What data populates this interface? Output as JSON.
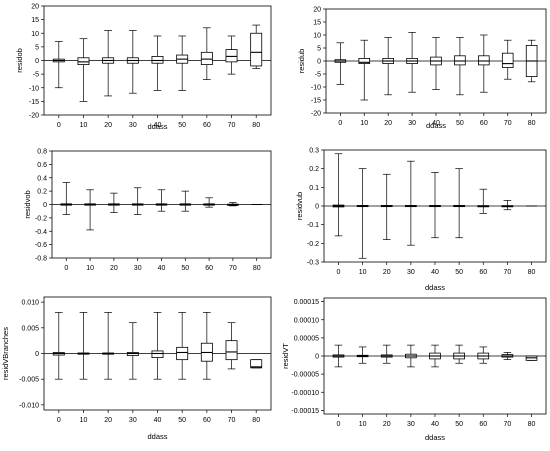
{
  "chart_data": [
    {
      "type": "boxplot",
      "xlabel": "ddass",
      "ylabel": "residob",
      "categories": [
        "0",
        "10",
        "20",
        "30",
        "40",
        "50",
        "60",
        "70",
        "80"
      ],
      "ylim": [
        -20,
        20
      ],
      "yticks": [
        "20",
        "15",
        "10",
        "5",
        "0",
        "-5",
        "-10",
        "-15",
        "-20"
      ],
      "ytick_values": [
        20,
        15,
        10,
        5,
        0,
        -5,
        -10,
        -15,
        -20
      ],
      "zero_line": 0,
      "boxes": [
        {
          "whisker_low": -10,
          "q1": -0.5,
          "median": 0,
          "q3": 0.5,
          "whisker_high": 7
        },
        {
          "whisker_low": -15,
          "q1": -1.5,
          "median": -0.5,
          "q3": 1,
          "whisker_high": 8
        },
        {
          "whisker_low": -13,
          "q1": -1,
          "median": 0,
          "q3": 1,
          "whisker_high": 11
        },
        {
          "whisker_low": -12,
          "q1": -1,
          "median": 0,
          "q3": 1,
          "whisker_high": 11
        },
        {
          "whisker_low": -11,
          "q1": -1,
          "median": 0,
          "q3": 1.5,
          "whisker_high": 9
        },
        {
          "whisker_low": -11,
          "q1": -1,
          "median": 0.5,
          "q3": 2,
          "whisker_high": 9
        },
        {
          "whisker_low": -7,
          "q1": -1.5,
          "median": 0.5,
          "q3": 3,
          "whisker_high": 12
        },
        {
          "whisker_low": -5,
          "q1": -0.5,
          "median": 1.5,
          "q3": 4,
          "whisker_high": 9
        },
        {
          "whisker_low": -3,
          "q1": -2,
          "median": 3,
          "q3": 10,
          "whisker_high": 13
        }
      ]
    },
    {
      "type": "boxplot",
      "xlabel": "ddass",
      "ylabel": "residub",
      "categories": [
        "0",
        "10",
        "20",
        "30",
        "40",
        "50",
        "60",
        "70",
        "80"
      ],
      "ylim": [
        -20,
        20
      ],
      "yticks": [
        "20",
        "15",
        "10",
        "5",
        "0",
        "-5",
        "-10",
        "-15",
        "-20"
      ],
      "ytick_values": [
        20,
        15,
        10,
        5,
        0,
        -5,
        -10,
        -15,
        -20
      ],
      "zero_line": 0,
      "boxes": [
        {
          "whisker_low": -9,
          "q1": -0.5,
          "median": 0,
          "q3": 0.5,
          "whisker_high": 7
        },
        {
          "whisker_low": -15,
          "q1": -1,
          "median": -0.5,
          "q3": 1,
          "whisker_high": 8
        },
        {
          "whisker_low": -13,
          "q1": -1,
          "median": 0,
          "q3": 1,
          "whisker_high": 9
        },
        {
          "whisker_low": -12,
          "q1": -1,
          "median": 0,
          "q3": 1,
          "whisker_high": 11
        },
        {
          "whisker_low": -11,
          "q1": -1.5,
          "median": 0,
          "q3": 1.5,
          "whisker_high": 9
        },
        {
          "whisker_low": -13,
          "q1": -1.5,
          "median": 0,
          "q3": 2,
          "whisker_high": 9
        },
        {
          "whisker_low": -12,
          "q1": -1.5,
          "median": 0,
          "q3": 2,
          "whisker_high": 10
        },
        {
          "whisker_low": -7,
          "q1": -2.5,
          "median": -1,
          "q3": 3,
          "whisker_high": 8
        },
        {
          "whisker_low": -8,
          "q1": -6,
          "median": 0,
          "q3": 6,
          "whisker_high": 8
        }
      ]
    },
    {
      "type": "boxplot",
      "xlabel": "",
      "ylabel": "residvob",
      "categories": [
        "0",
        "10",
        "20",
        "30",
        "40",
        "50",
        "60",
        "70",
        "80"
      ],
      "ylim": [
        -0.8,
        0.8
      ],
      "yticks": [
        "0.8",
        "0.6",
        "0.4",
        "0.2",
        "0",
        "-0.2",
        "-0.4",
        "-0.6",
        "-0.8"
      ],
      "ytick_values": [
        0.8,
        0.6,
        0.4,
        0.2,
        0,
        -0.2,
        -0.4,
        -0.6,
        -0.8
      ],
      "zero_line": 0,
      "boxes": [
        {
          "whisker_low": -0.15,
          "q1": -0.01,
          "median": 0,
          "q3": 0.01,
          "whisker_high": 0.33
        },
        {
          "whisker_low": -0.38,
          "q1": -0.01,
          "median": 0,
          "q3": 0.01,
          "whisker_high": 0.22
        },
        {
          "whisker_low": -0.12,
          "q1": -0.01,
          "median": 0,
          "q3": 0.01,
          "whisker_high": 0.17
        },
        {
          "whisker_low": -0.15,
          "q1": -0.01,
          "median": 0,
          "q3": 0.01,
          "whisker_high": 0.25
        },
        {
          "whisker_low": -0.1,
          "q1": -0.01,
          "median": 0,
          "q3": 0.01,
          "whisker_high": 0.22
        },
        {
          "whisker_low": -0.1,
          "q1": -0.01,
          "median": 0,
          "q3": 0.01,
          "whisker_high": 0.2
        },
        {
          "whisker_low": -0.04,
          "q1": -0.01,
          "median": 0,
          "q3": 0.01,
          "whisker_high": 0.1
        },
        {
          "whisker_low": -0.02,
          "q1": -0.005,
          "median": 0,
          "q3": 0.005,
          "whisker_high": 0.03
        },
        {
          "whisker_low": 0,
          "q1": 0,
          "median": 0,
          "q3": 0,
          "whisker_high": 0
        }
      ]
    },
    {
      "type": "boxplot",
      "xlabel": "ddass",
      "ylabel": "residvub",
      "categories": [
        "0",
        "10",
        "20",
        "30",
        "40",
        "50",
        "60",
        "70",
        "80"
      ],
      "ylim": [
        -0.3,
        0.3
      ],
      "yticks": [
        "0.3",
        "0.2",
        "0.1",
        "0",
        "-0.1",
        "-0.2",
        "-0.3"
      ],
      "ytick_values": [
        0.3,
        0.2,
        0.1,
        0,
        -0.1,
        -0.2,
        -0.3
      ],
      "zero_line": 0,
      "boxes": [
        {
          "whisker_low": -0.16,
          "q1": -0.005,
          "median": 0,
          "q3": 0.005,
          "whisker_high": 0.28
        },
        {
          "whisker_low": -0.28,
          "q1": -0.003,
          "median": 0,
          "q3": 0.003,
          "whisker_high": 0.2
        },
        {
          "whisker_low": -0.18,
          "q1": -0.003,
          "median": 0,
          "q3": 0.003,
          "whisker_high": 0.17
        },
        {
          "whisker_low": -0.21,
          "q1": -0.003,
          "median": 0,
          "q3": 0.003,
          "whisker_high": 0.24
        },
        {
          "whisker_low": -0.17,
          "q1": -0.003,
          "median": 0,
          "q3": 0.003,
          "whisker_high": 0.18
        },
        {
          "whisker_low": -0.17,
          "q1": -0.003,
          "median": 0,
          "q3": 0.003,
          "whisker_high": 0.2
        },
        {
          "whisker_low": -0.04,
          "q1": -0.002,
          "median": 0,
          "q3": 0.002,
          "whisker_high": 0.09
        },
        {
          "whisker_low": -0.02,
          "q1": -0.002,
          "median": 0,
          "q3": 0.002,
          "whisker_high": 0.03
        },
        {
          "whisker_low": 0,
          "q1": 0,
          "median": 0,
          "q3": 0,
          "whisker_high": 0
        }
      ]
    },
    {
      "type": "boxplot",
      "xlabel": "ddass",
      "ylabel": "residVBranches",
      "categories": [
        "0",
        "10",
        "20",
        "30",
        "40",
        "50",
        "60",
        "70",
        "80"
      ],
      "ylim": [
        -0.011,
        0.011
      ],
      "yticks": [
        "0.010",
        "0.005",
        "0",
        "-0.005",
        "-0.010"
      ],
      "ytick_values": [
        0.01,
        0.005,
        0,
        -0.005,
        -0.01
      ],
      "zero_line": 0,
      "boxes": [
        {
          "whisker_low": -0.005,
          "q1": -0.0003,
          "median": 0,
          "q3": 0.0002,
          "whisker_high": 0.008
        },
        {
          "whisker_low": -0.005,
          "q1": -0.0001,
          "median": 0,
          "q3": 0.0001,
          "whisker_high": 0.008
        },
        {
          "whisker_low": -0.005,
          "q1": -0.0001,
          "median": 0,
          "q3": 0.0001,
          "whisker_high": 0.008
        },
        {
          "whisker_low": -0.005,
          "q1": -0.0004,
          "median": 0,
          "q3": 0.0002,
          "whisker_high": 0.006
        },
        {
          "whisker_low": -0.005,
          "q1": -0.0008,
          "median": 0,
          "q3": 0.0005,
          "whisker_high": 0.008
        },
        {
          "whisker_low": -0.005,
          "q1": -0.0012,
          "median": 0.0002,
          "q3": 0.0012,
          "whisker_high": 0.008
        },
        {
          "whisker_low": -0.005,
          "q1": -0.0015,
          "median": 0.0002,
          "q3": 0.002,
          "whisker_high": 0.008
        },
        {
          "whisker_low": -0.003,
          "q1": -0.0012,
          "median": 0.0003,
          "q3": 0.0025,
          "whisker_high": 0.006
        },
        {
          "whisker_low": -0.0028,
          "q1": -0.0028,
          "median": -0.0026,
          "q3": -0.0012,
          "whisker_high": -0.0012
        }
      ]
    },
    {
      "type": "boxplot",
      "xlabel": "ddass",
      "ylabel": "residVT",
      "categories": [
        "0",
        "10",
        "20",
        "30",
        "40",
        "50",
        "60",
        "70",
        "80"
      ],
      "ylim": [
        -0.00016,
        0.00016
      ],
      "yticks": [
        "0.00015",
        "0.00010",
        "0.00005",
        "0",
        "-0.00005",
        "-0.00010",
        "-0.00015"
      ],
      "ytick_values": [
        0.00015,
        0.0001,
        5e-05,
        0,
        -5e-05,
        -0.0001,
        -0.00015
      ],
      "zero_line": 0,
      "boxes": [
        {
          "whisker_low": -3e-05,
          "q1": -3e-06,
          "median": 0,
          "q3": 3e-06,
          "whisker_high": 3e-05
        },
        {
          "whisker_low": -2e-05,
          "q1": -2e-06,
          "median": 0,
          "q3": 2e-06,
          "whisker_high": 2.5e-05
        },
        {
          "whisker_low": -2e-05,
          "q1": -3e-06,
          "median": 0,
          "q3": 3e-06,
          "whisker_high": 3e-05
        },
        {
          "whisker_low": -3e-05,
          "q1": -5e-06,
          "median": 0,
          "q3": 5e-06,
          "whisker_high": 3e-05
        },
        {
          "whisker_low": -3e-05,
          "q1": -8e-06,
          "median": 0,
          "q3": 8e-06,
          "whisker_high": 3e-05
        },
        {
          "whisker_low": -2e-05,
          "q1": -8e-06,
          "median": 0,
          "q3": 8e-06,
          "whisker_high": 3e-05
        },
        {
          "whisker_low": -2e-05,
          "q1": -8e-06,
          "median": 0,
          "q3": 8e-06,
          "whisker_high": 2.5e-05
        },
        {
          "whisker_low": -1e-05,
          "q1": -3e-06,
          "median": 0,
          "q3": 4e-06,
          "whisker_high": 1e-05
        },
        {
          "whisker_low": -1.2e-05,
          "q1": -1.2e-05,
          "median": -5e-06,
          "q3": 0,
          "whisker_high": 0
        }
      ]
    }
  ]
}
